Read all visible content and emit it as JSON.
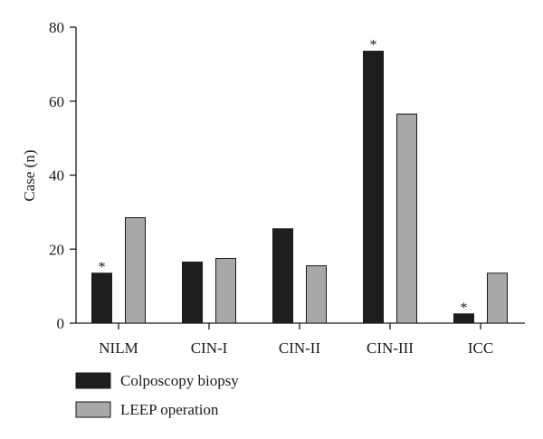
{
  "chart_data": {
    "type": "bar",
    "categories": [
      "NILM",
      "CIN-I",
      "CIN-II",
      "CIN-III",
      "ICC"
    ],
    "series": [
      {
        "name": "Colposcopy biopsy",
        "values": [
          13.5,
          16.5,
          25.5,
          73.5,
          2.5
        ],
        "color": "#1e1e1e"
      },
      {
        "name": "LEEP operation",
        "values": [
          28.5,
          17.5,
          15.5,
          56.5,
          13.5
        ],
        "color": "#a8a8a8"
      }
    ],
    "annotations": [
      {
        "category": "NILM",
        "series": "Colposcopy biopsy",
        "text": "*"
      },
      {
        "category": "CIN-III",
        "series": "Colposcopy biopsy",
        "text": "*"
      },
      {
        "category": "ICC",
        "series": "Colposcopy biopsy",
        "text": "*"
      }
    ],
    "xlabel": "",
    "ylabel": "Case (n)",
    "ylim": [
      0,
      80
    ],
    "yticks": [
      0,
      20,
      40,
      60,
      80
    ],
    "grid": false,
    "legend_position": "bottom-left"
  }
}
